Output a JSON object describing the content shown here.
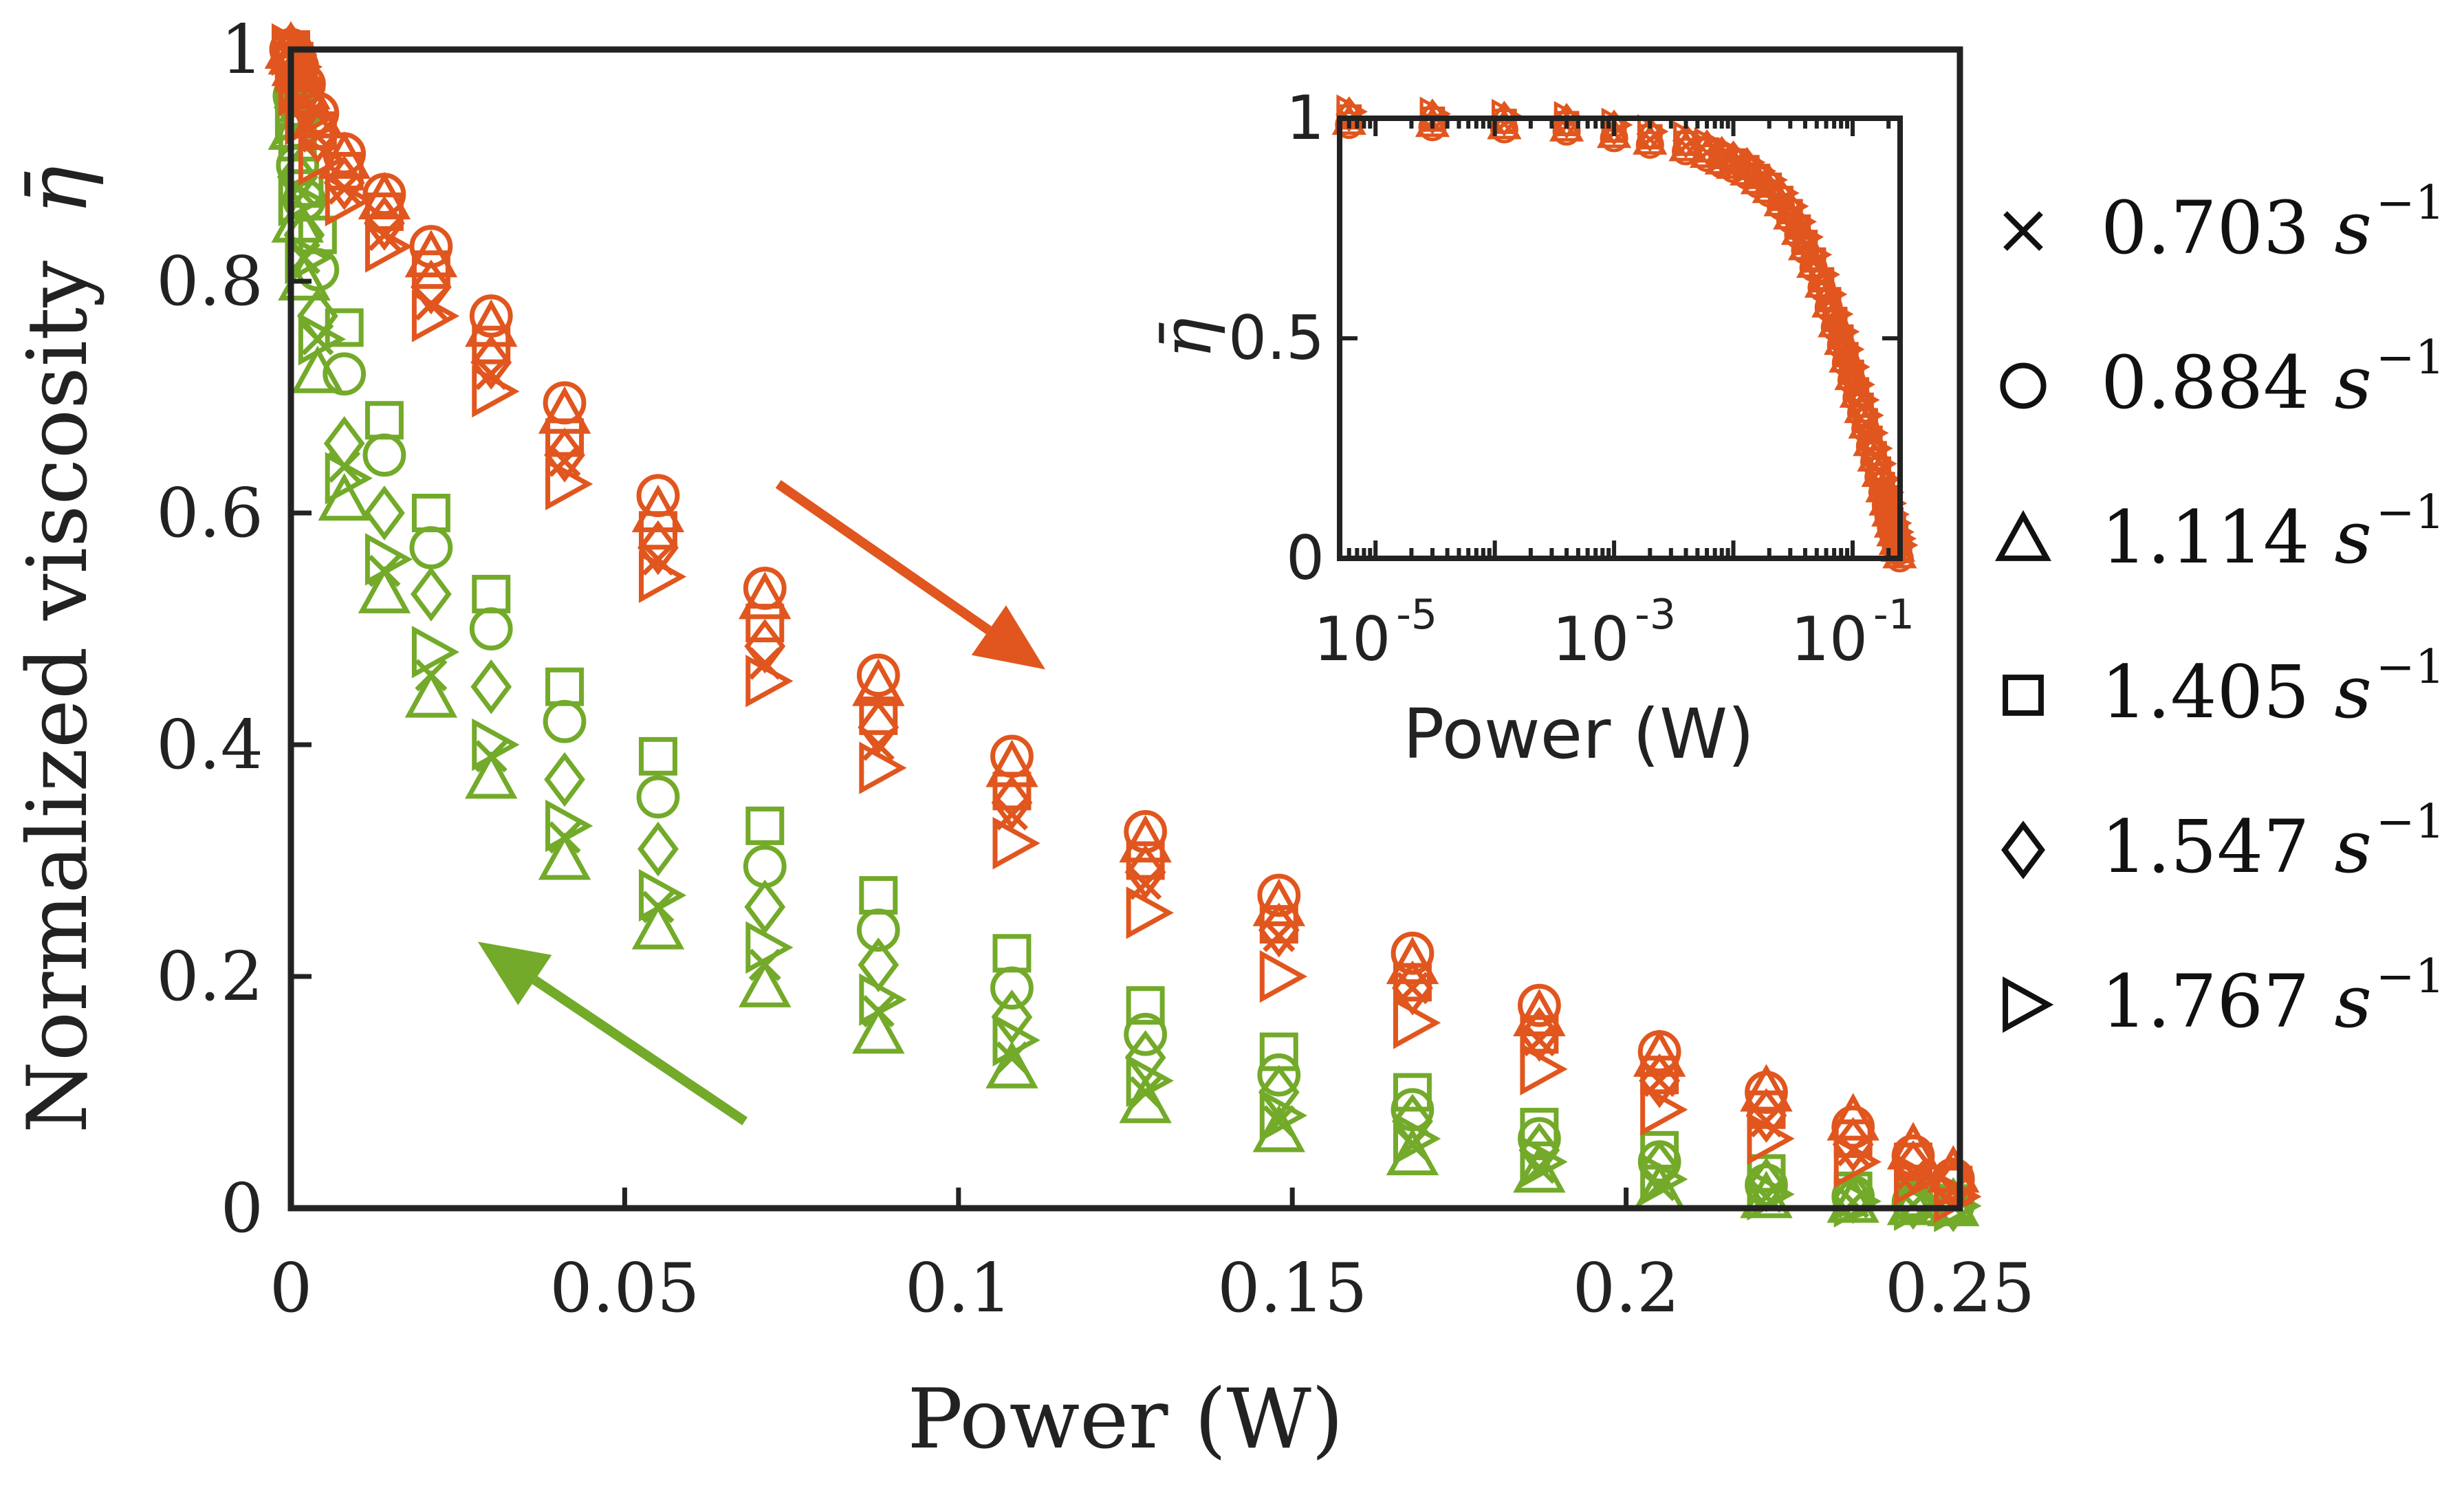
{
  "chart_data": [
    {
      "type": "scatter",
      "title": "",
      "xlabel": "Power (W)",
      "ylabel": "Normalized viscosity",
      "ylabel_symbol": "η̄",
      "xlim": [
        0,
        0.25
      ],
      "ylim": [
        0,
        1
      ],
      "xticks": [
        "0",
        "0.05",
        "0.1",
        "0.15",
        "0.2",
        "0.25"
      ],
      "yticks": [
        "0",
        "0.2",
        "0.4",
        "0.6",
        "0.8",
        "1"
      ],
      "grid": false,
      "legend_position": "right-outside",
      "colors": {
        "increasing_power": "#e0561e",
        "decreasing_power": "#73aa2a",
        "axes": "#222222"
      },
      "arrows": [
        {
          "name": "increasing-power-arrow",
          "color": "#e0561e",
          "from": [
            0.073,
            0.625
          ],
          "to": [
            0.113,
            0.465
          ]
        },
        {
          "name": "decreasing-power-arrow",
          "color": "#73aa2a",
          "from": [
            0.068,
            0.075
          ],
          "to": [
            0.028,
            0.23
          ]
        }
      ],
      "x": [
        0,
        0.0005,
        0.001,
        0.002,
        0.004,
        0.008,
        0.014,
        0.021,
        0.03,
        0.041,
        0.055,
        0.071,
        0.088,
        0.108,
        0.128,
        0.148,
        0.168,
        0.187,
        0.205,
        0.221,
        0.234,
        0.243,
        0.249
      ],
      "series": [
        {
          "name": "0.703",
          "marker": "x",
          "branch": "increasing",
          "values": [
            1.0,
            0.99,
            0.975,
            0.955,
            0.925,
            0.88,
            0.84,
            0.78,
            0.72,
            0.645,
            0.56,
            0.47,
            0.4,
            0.34,
            0.28,
            0.235,
            0.19,
            0.145,
            0.11,
            0.075,
            0.05,
            0.03,
            0.015
          ]
        },
        {
          "name": "0.884",
          "marker": "circle",
          "branch": "increasing",
          "values": [
            1.0,
            0.995,
            0.985,
            0.97,
            0.945,
            0.91,
            0.875,
            0.83,
            0.77,
            0.695,
            0.615,
            0.535,
            0.46,
            0.39,
            0.325,
            0.27,
            0.22,
            0.175,
            0.135,
            0.1,
            0.07,
            0.045,
            0.025
          ]
        },
        {
          "name": "1.114",
          "marker": "triangle",
          "branch": "increasing",
          "values": [
            1.0,
            0.995,
            0.985,
            0.965,
            0.94,
            0.905,
            0.87,
            0.82,
            0.76,
            0.685,
            0.6,
            0.525,
            0.45,
            0.38,
            0.315,
            0.26,
            0.21,
            0.165,
            0.13,
            0.1,
            0.075,
            0.05,
            0.03
          ]
        },
        {
          "name": "1.405",
          "marker": "square",
          "branch": "increasing",
          "values": [
            1.0,
            0.99,
            0.98,
            0.96,
            0.93,
            0.895,
            0.86,
            0.81,
            0.745,
            0.665,
            0.585,
            0.505,
            0.425,
            0.36,
            0.3,
            0.245,
            0.195,
            0.15,
            0.115,
            0.085,
            0.06,
            0.04,
            0.02
          ]
        },
        {
          "name": "1.547",
          "marker": "diamond",
          "branch": "increasing",
          "values": [
            1.0,
            0.99,
            0.975,
            0.955,
            0.925,
            0.885,
            0.85,
            0.795,
            0.73,
            0.65,
            0.57,
            0.485,
            0.415,
            0.35,
            0.29,
            0.24,
            0.19,
            0.15,
            0.11,
            0.08,
            0.055,
            0.035,
            0.02
          ]
        },
        {
          "name": "1.767",
          "marker": "triangle-right",
          "branch": "increasing",
          "values": [
            1.0,
            0.985,
            0.965,
            0.94,
            0.905,
            0.87,
            0.83,
            0.77,
            0.705,
            0.625,
            0.545,
            0.455,
            0.38,
            0.315,
            0.255,
            0.2,
            0.16,
            0.12,
            0.085,
            0.06,
            0.04,
            0.025,
            0.01
          ]
        },
        {
          "name": "0.703",
          "marker": "x",
          "branch": "decreasing",
          "values": [
            1.0,
            0.95,
            0.88,
            0.82,
            0.75,
            0.64,
            0.55,
            0.46,
            0.39,
            0.32,
            0.26,
            0.21,
            0.17,
            0.13,
            0.1,
            0.075,
            0.055,
            0.035,
            0.02,
            0.01,
            0.005,
            0.003,
            0.002
          ]
        },
        {
          "name": "0.884",
          "marker": "circle",
          "branch": "decreasing",
          "values": [
            1.0,
            0.96,
            0.9,
            0.87,
            0.81,
            0.72,
            0.65,
            0.57,
            0.5,
            0.42,
            0.355,
            0.295,
            0.24,
            0.19,
            0.15,
            0.115,
            0.085,
            0.06,
            0.04,
            0.02,
            0.01,
            0.005,
            0.003
          ]
        },
        {
          "name": "1.114",
          "marker": "triangle",
          "branch": "decreasing",
          "values": [
            1.0,
            0.93,
            0.85,
            0.8,
            0.72,
            0.61,
            0.53,
            0.44,
            0.37,
            0.3,
            0.24,
            0.19,
            0.15,
            0.12,
            0.09,
            0.065,
            0.045,
            0.03,
            0.015,
            0.008,
            0.004,
            0.002,
            0.001
          ]
        },
        {
          "name": "1.405",
          "marker": "square",
          "branch": "decreasing",
          "values": [
            1.0,
            0.97,
            0.92,
            0.88,
            0.84,
            0.76,
            0.68,
            0.6,
            0.53,
            0.45,
            0.39,
            0.33,
            0.27,
            0.22,
            0.175,
            0.135,
            0.1,
            0.07,
            0.05,
            0.03,
            0.015,
            0.008,
            0.004
          ]
        },
        {
          "name": "1.547",
          "marker": "diamond",
          "branch": "decreasing",
          "values": [
            1.0,
            0.95,
            0.89,
            0.84,
            0.77,
            0.66,
            0.6,
            0.53,
            0.45,
            0.37,
            0.31,
            0.26,
            0.21,
            0.165,
            0.13,
            0.1,
            0.075,
            0.05,
            0.035,
            0.02,
            0.01,
            0.005,
            0.003
          ]
        },
        {
          "name": "1.767",
          "marker": "triangle-right",
          "branch": "decreasing",
          "values": [
            1.0,
            0.94,
            0.87,
            0.82,
            0.75,
            0.63,
            0.56,
            0.48,
            0.4,
            0.33,
            0.27,
            0.225,
            0.18,
            0.145,
            0.11,
            0.08,
            0.06,
            0.04,
            0.025,
            0.012,
            0.006,
            0.003,
            0.002
          ]
        }
      ]
    },
    {
      "type": "scatter",
      "title": "",
      "xlabel": "Power (W)",
      "ylabel": "η̄",
      "xscale": "log",
      "xlim": [
        5e-06,
        0.25
      ],
      "ylim": [
        0,
        1
      ],
      "xticks": [
        {
          "base": "10",
          "exp": "-5"
        },
        {
          "base": "10",
          "exp": "-3"
        },
        {
          "base": "10",
          "exp": "-1"
        }
      ],
      "yticks": [
        "0",
        "0.5",
        "1"
      ],
      "x": [
        6e-06,
        3e-05,
        0.00012,
        0.0004,
        0.001,
        0.002,
        0.004,
        0.006,
        0.008,
        0.01,
        0.013,
        0.016,
        0.02,
        0.025,
        0.03,
        0.035,
        0.04,
        0.047,
        0.055,
        0.063,
        0.071,
        0.08,
        0.088,
        0.098,
        0.108,
        0.118,
        0.128,
        0.14,
        0.152,
        0.165,
        0.178,
        0.19,
        0.2,
        0.21,
        0.22,
        0.23,
        0.24,
        0.248
      ],
      "series": [
        {
          "name": "increasing power (all shear rates)",
          "marker": "mixed",
          "color": "#e0561e",
          "values": [
            1.0,
            0.995,
            0.99,
            0.985,
            0.97,
            0.955,
            0.94,
            0.925,
            0.91,
            0.9,
            0.885,
            0.865,
            0.845,
            0.815,
            0.785,
            0.75,
            0.715,
            0.675,
            0.63,
            0.585,
            0.54,
            0.5,
            0.46,
            0.42,
            0.38,
            0.345,
            0.31,
            0.27,
            0.235,
            0.2,
            0.165,
            0.135,
            0.11,
            0.085,
            0.065,
            0.045,
            0.03,
            0.015
          ]
        }
      ]
    }
  ],
  "legend": {
    "items": [
      {
        "marker": "x",
        "label": "0.703"
      },
      {
        "marker": "circle",
        "label": "0.884"
      },
      {
        "marker": "triangle",
        "label": "1.114"
      },
      {
        "marker": "square",
        "label": "1.405"
      },
      {
        "marker": "diamond",
        "label": "1.547"
      },
      {
        "marker": "triangle-right",
        "label": "1.767"
      }
    ],
    "unit_base": "s",
    "unit_exp": "−1"
  }
}
